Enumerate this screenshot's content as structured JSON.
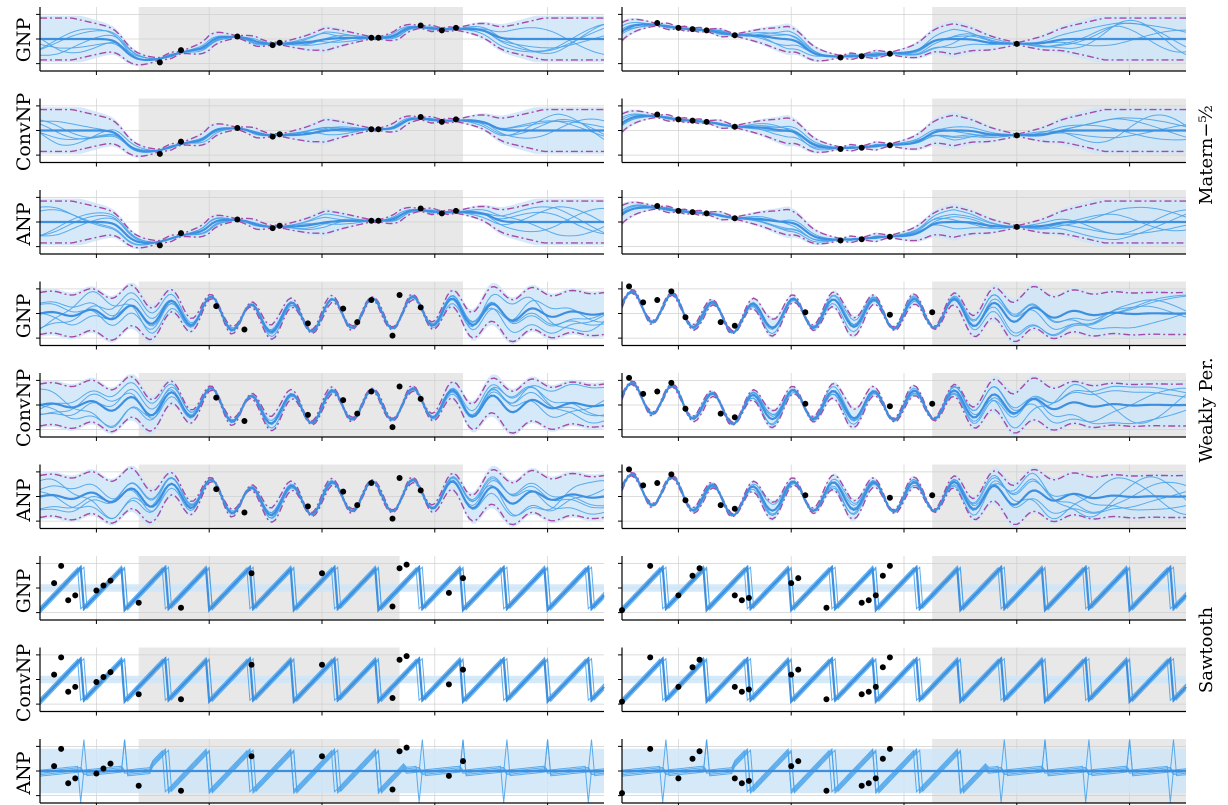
{
  "figure": {
    "row_labels": [
      "GNP",
      "ConvNP",
      "ANP",
      "GNP",
      "ConvNP",
      "ANP",
      "GNP",
      "ConvNP",
      "ANP"
    ],
    "group_labels": [
      "Matern−⁵⁄₂",
      "Weakly Per.",
      "Sawtooth"
    ],
    "colors": {
      "sample": "#4aa3ea",
      "mean": "#3d8fe0",
      "band": "#cfe5f8",
      "gt": "#a54aa6",
      "context_region": "#e8e8e8",
      "point": "#000000",
      "grid": "#d0d0d0"
    }
  },
  "chart_data": [
    {
      "type": "line",
      "row": "GNP",
      "column": "left",
      "kernel": "Matern-5/2",
      "context_x": [
        -1.15,
        -1.0,
        -0.6,
        -0.35,
        -0.3,
        0.35,
        0.4,
        0.7,
        0.85,
        0.95
      ],
      "context_y": [
        -0.95,
        -0.45,
        0.1,
        -0.25,
        -0.15,
        0.05,
        0.05,
        0.55,
        0.35,
        0.45
      ]
    },
    {
      "type": "line",
      "row": "GNP",
      "column": "right",
      "kernel": "Matern-5/2",
      "context_x": [
        -1.75,
        -1.6,
        -1.5,
        -1.4,
        -1.2,
        -0.45,
        -0.3,
        -0.1,
        0.8
      ],
      "context_y": [
        0.65,
        0.45,
        0.4,
        0.35,
        0.15,
        -0.75,
        -0.7,
        -0.6,
        -0.2
      ]
    },
    {
      "type": "line",
      "row": "ConvNP",
      "column": "left",
      "kernel": "Matern-5/2",
      "context_x": [
        -1.15,
        -1.0,
        -0.6,
        -0.35,
        -0.3,
        0.35,
        0.4,
        0.7,
        0.85,
        0.95
      ],
      "context_y": [
        -0.95,
        -0.45,
        0.1,
        -0.25,
        -0.15,
        0.05,
        0.05,
        0.55,
        0.35,
        0.45
      ]
    },
    {
      "type": "line",
      "row": "ConvNP",
      "column": "right",
      "kernel": "Matern-5/2",
      "context_x": [
        -1.75,
        -1.6,
        -1.5,
        -1.4,
        -1.2,
        -0.45,
        -0.3,
        -0.1,
        0.8
      ],
      "context_y": [
        0.65,
        0.45,
        0.4,
        0.35,
        0.15,
        -0.75,
        -0.7,
        -0.6,
        -0.2
      ]
    },
    {
      "type": "line",
      "row": "ANP",
      "column": "left",
      "kernel": "Matern-5/2",
      "context_x": [
        -1.15,
        -1.0,
        -0.6,
        -0.35,
        -0.3,
        0.35,
        0.4,
        0.7,
        0.85,
        0.95
      ],
      "context_y": [
        -0.95,
        -0.45,
        0.1,
        -0.25,
        -0.15,
        0.05,
        0.05,
        0.55,
        0.35,
        0.45
      ]
    },
    {
      "type": "line",
      "row": "ANP",
      "column": "right",
      "kernel": "Matern-5/2",
      "context_x": [
        -1.75,
        -1.6,
        -1.5,
        -1.4,
        -1.2,
        -0.45,
        -0.3,
        -0.1,
        0.8
      ],
      "context_y": [
        0.65,
        0.45,
        0.4,
        0.35,
        0.15,
        -0.75,
        -0.7,
        -0.6,
        -0.2
      ]
    },
    {
      "type": "line",
      "row": "GNP",
      "column": "left",
      "kernel": "Weakly Per.",
      "context_x": [
        -0.75,
        -0.55,
        -0.1,
        0.15,
        0.25,
        0.35,
        0.5,
        0.55,
        0.7
      ],
      "context_y": [
        0.3,
        -0.65,
        -0.4,
        0.2,
        -0.35,
        0.55,
        -0.9,
        0.75,
        0.25
      ]
    },
    {
      "type": "line",
      "row": "GNP",
      "column": "right",
      "kernel": "Weakly Per.",
      "context_x": [
        -1.95,
        -1.85,
        -1.75,
        -1.65,
        -1.55,
        -1.3,
        -1.2,
        -0.7,
        -0.1,
        0.2
      ],
      "context_y": [
        1.1,
        0.45,
        0.55,
        0.9,
        -0.15,
        -0.35,
        -0.5,
        0.05,
        -0.05,
        0.05
      ]
    },
    {
      "type": "line",
      "row": "ConvNP",
      "column": "left",
      "kernel": "Weakly Per.",
      "context_x": [
        -0.75,
        -0.55,
        -0.1,
        0.15,
        0.25,
        0.35,
        0.5,
        0.55,
        0.7
      ],
      "context_y": [
        0.3,
        -0.65,
        -0.4,
        0.2,
        -0.35,
        0.55,
        -0.9,
        0.75,
        0.25
      ]
    },
    {
      "type": "line",
      "row": "ConvNP",
      "column": "right",
      "kernel": "Weakly Per.",
      "context_x": [
        -1.95,
        -1.85,
        -1.75,
        -1.65,
        -1.55,
        -1.3,
        -1.2,
        -0.7,
        -0.1,
        0.2
      ],
      "context_y": [
        1.1,
        0.45,
        0.55,
        0.9,
        -0.15,
        -0.35,
        -0.5,
        0.05,
        -0.05,
        0.05
      ]
    },
    {
      "type": "line",
      "row": "ANP",
      "column": "left",
      "kernel": "Weakly Per.",
      "context_x": [
        -0.75,
        -0.55,
        -0.1,
        0.15,
        0.25,
        0.35,
        0.5,
        0.55,
        0.7
      ],
      "context_y": [
        0.3,
        -0.65,
        -0.4,
        0.2,
        -0.35,
        0.55,
        -0.9,
        0.75,
        0.25
      ]
    },
    {
      "type": "line",
      "row": "ANP",
      "column": "right",
      "kernel": "Weakly Per.",
      "context_x": [
        -1.95,
        -1.85,
        -1.75,
        -1.65,
        -1.55,
        -1.3,
        -1.2,
        -0.7,
        -0.1,
        0.2
      ],
      "context_y": [
        1.1,
        0.45,
        0.55,
        0.9,
        -0.15,
        -0.35,
        -0.5,
        0.05,
        -0.05,
        0.05
      ]
    },
    {
      "type": "line",
      "row": "GNP",
      "column": "left",
      "kernel": "Sawtooth",
      "context_x": [
        -1.9,
        -1.85,
        -1.8,
        -1.75,
        -1.6,
        -1.55,
        -1.5,
        -1.3,
        -1.0,
        -0.5,
        0.0,
        0.5,
        0.55,
        0.6,
        0.9,
        1.0
      ],
      "context_y": [
        0.2,
        0.9,
        -0.5,
        -0.3,
        -0.1,
        0.1,
        0.3,
        -0.6,
        -0.8,
        0.6,
        0.6,
        -0.75,
        0.8,
        0.95,
        -0.2,
        0.4
      ]
    },
    {
      "type": "line",
      "row": "GNP",
      "column": "right",
      "kernel": "Sawtooth",
      "context_x": [
        -2.0,
        -1.8,
        -1.6,
        -1.5,
        -1.45,
        -1.2,
        -1.15,
        -1.1,
        -0.8,
        -0.75,
        -0.55,
        -0.3,
        -0.25,
        -0.2,
        -0.15,
        -0.1
      ],
      "context_y": [
        -0.9,
        0.9,
        -0.3,
        0.5,
        0.8,
        -0.3,
        -0.5,
        -0.4,
        0.2,
        0.4,
        -0.8,
        -0.6,
        -0.5,
        -0.3,
        0.5,
        0.9
      ]
    },
    {
      "type": "line",
      "row": "ConvNP",
      "column": "left",
      "kernel": "Sawtooth",
      "context_x": [
        -1.9,
        -1.85,
        -1.8,
        -1.75,
        -1.6,
        -1.55,
        -1.5,
        -1.3,
        -1.0,
        -0.5,
        0.0,
        0.5,
        0.55,
        0.6,
        0.9,
        1.0
      ],
      "context_y": [
        0.2,
        0.9,
        -0.5,
        -0.3,
        -0.1,
        0.1,
        0.3,
        -0.6,
        -0.8,
        0.6,
        0.6,
        -0.75,
        0.8,
        0.95,
        -0.2,
        0.4
      ]
    },
    {
      "type": "line",
      "row": "ConvNP",
      "column": "right",
      "kernel": "Sawtooth",
      "context_x": [
        -2.0,
        -1.8,
        -1.6,
        -1.5,
        -1.45,
        -1.2,
        -1.15,
        -1.1,
        -0.8,
        -0.75,
        -0.55,
        -0.3,
        -0.25,
        -0.2,
        -0.15,
        -0.1
      ],
      "context_y": [
        -0.9,
        0.9,
        -0.3,
        0.5,
        0.8,
        -0.3,
        -0.5,
        -0.4,
        0.2,
        0.4,
        -0.8,
        -0.6,
        -0.5,
        -0.3,
        0.5,
        0.9
      ]
    },
    {
      "type": "line",
      "row": "ANP",
      "column": "left",
      "kernel": "Sawtooth",
      "context_x": [
        -1.9,
        -1.85,
        -1.8,
        -1.75,
        -1.6,
        -1.55,
        -1.5,
        -1.3,
        -1.0,
        -0.5,
        0.0,
        0.5,
        0.55,
        0.6,
        0.9,
        1.0
      ],
      "context_y": [
        0.2,
        0.9,
        -0.5,
        -0.3,
        -0.1,
        0.1,
        0.3,
        -0.6,
        -0.8,
        0.6,
        0.6,
        -0.75,
        0.8,
        0.95,
        -0.2,
        0.4
      ]
    },
    {
      "type": "line",
      "row": "ANP",
      "column": "right",
      "kernel": "Sawtooth",
      "context_x": [
        -2.0,
        -1.8,
        -1.6,
        -1.5,
        -1.45,
        -1.2,
        -1.15,
        -1.1,
        -0.8,
        -0.75,
        -0.55,
        -0.3,
        -0.25,
        -0.2,
        -0.15,
        -0.1
      ],
      "context_y": [
        -0.9,
        0.9,
        -0.3,
        0.5,
        0.8,
        -0.3,
        -0.5,
        -0.4,
        0.2,
        0.4,
        -0.8,
        -0.6,
        -0.5,
        -0.3,
        0.5,
        0.9
      ]
    }
  ]
}
